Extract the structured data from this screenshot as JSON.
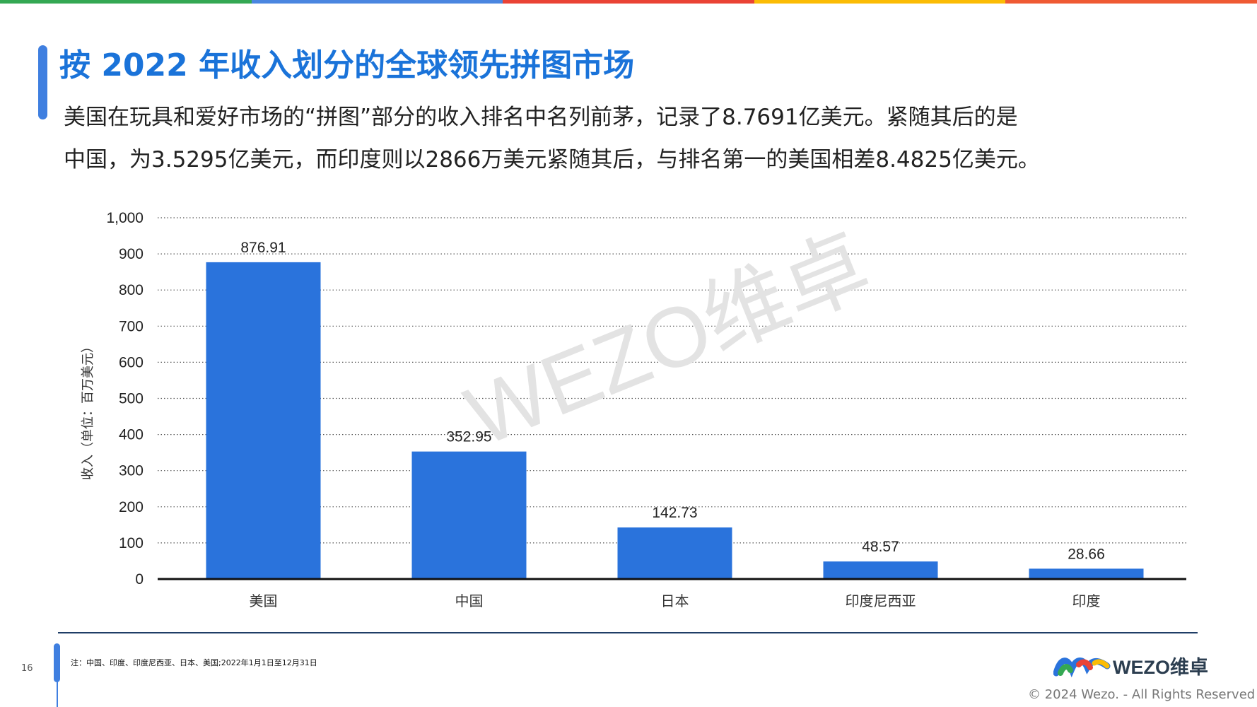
{
  "colors": {
    "top_stripes": [
      "#34a853",
      "#4a86e0",
      "#ea4335",
      "#fbbc05",
      "#ef5a33"
    ],
    "title": "#1a73d9",
    "bar": "#2a73dc",
    "watermark": "#e3e3e3"
  },
  "header": {
    "title": "按 2022 年收入划分的全球领先拼图市场",
    "desc_line1": "美国在玩具和爱好市场的“拼图”部分的收入排名中名列前茅，记录了8.7691亿美元。紧随其后的是",
    "desc_line2": "中国，为3.5295亿美元，而印度则以2866万美元紧随其后，与排名第一的美国相差8.4825亿美元。"
  },
  "watermark": "WEZO维卓",
  "chart_data": {
    "type": "bar",
    "title": "",
    "xlabel": "",
    "ylabel": "收入（单位：百万美元）",
    "categories": [
      "美国",
      "中国",
      "日本",
      "印度尼西亚",
      "印度"
    ],
    "values": [
      876.91,
      352.95,
      142.73,
      48.57,
      28.66
    ],
    "value_labels": [
      "876.91",
      "352.95",
      "142.73",
      "48.57",
      "28.66"
    ],
    "yticks": [
      0,
      100,
      200,
      300,
      400,
      500,
      600,
      700,
      800,
      900,
      1000
    ],
    "ytick_labels": [
      "0",
      "100",
      "200",
      "300",
      "400",
      "500",
      "600",
      "700",
      "800",
      "900",
      "1,000"
    ],
    "ylim": [
      0,
      1000
    ],
    "grid": "dotted horizontal",
    "legend": "none"
  },
  "footer": {
    "page_number": "16",
    "note": "注：中国、印度、印度尼西亚、日本、美国;2022年1月1日至12月31日",
    "logo_text": "WEZO维卓",
    "copyright": "© 2024 Wezo. - All Rights Reserved"
  }
}
